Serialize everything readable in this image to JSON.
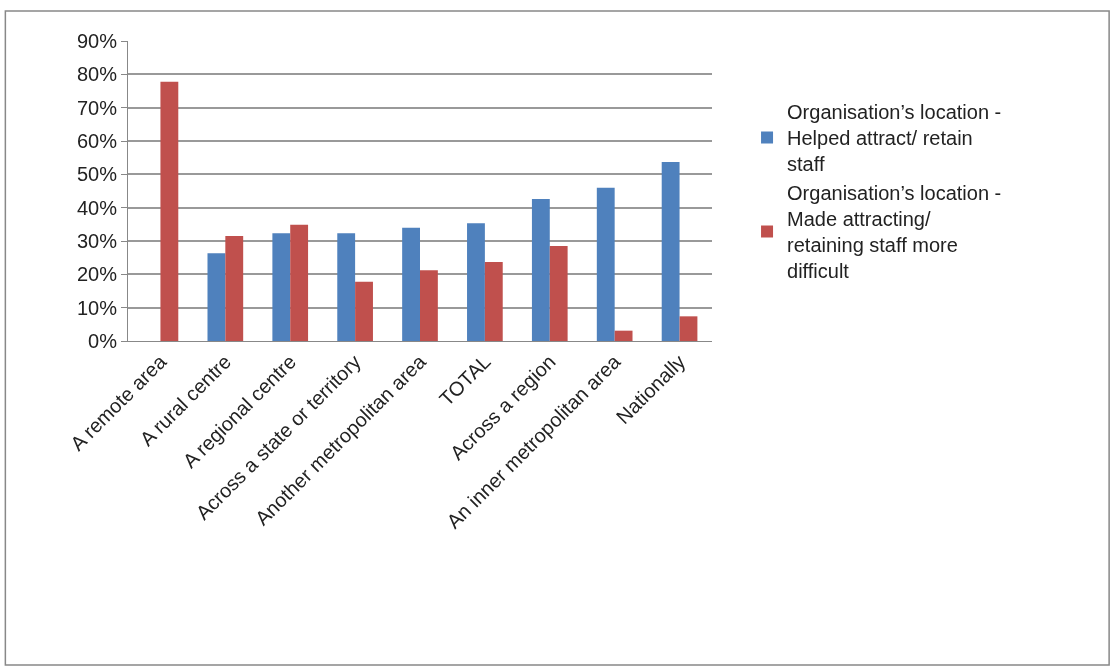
{
  "chart_data": {
    "type": "bar",
    "categories": [
      "A remote area",
      "A rural centre",
      "A regional centre",
      "Across a state or territory",
      "Another metropolitan area",
      "TOTAL",
      "Across a region",
      "An inner metropolitan area",
      "Nationally"
    ],
    "series": [
      {
        "name": "Organisation’s location - Helped attract/ retain staff",
        "color": "#4f81bd",
        "values": [
          0,
          26.3,
          32.3,
          32.3,
          34.0,
          35.3,
          42.6,
          46.0,
          53.7
        ]
      },
      {
        "name": "Organisation’s location - Made attracting/ retaining staff more difficult",
        "color": "#c0504d",
        "values": [
          77.8,
          31.5,
          34.9,
          17.8,
          21.2,
          23.7,
          28.5,
          3.1,
          7.4
        ]
      }
    ],
    "ylim": [
      0,
      90
    ],
    "yticks": [
      {
        "value": 0,
        "label": "0%"
      },
      {
        "value": 10,
        "label": "10%"
      },
      {
        "value": 20,
        "label": "20%"
      },
      {
        "value": 30,
        "label": "30%"
      },
      {
        "value": 40,
        "label": "40%"
      },
      {
        "value": 50,
        "label": "50%"
      },
      {
        "value": 60,
        "label": "60%"
      },
      {
        "value": 70,
        "label": "70%"
      },
      {
        "value": 80,
        "label": "80%"
      },
      {
        "value": 90,
        "label": "90%"
      }
    ],
    "grid": "y",
    "legend": "right"
  }
}
